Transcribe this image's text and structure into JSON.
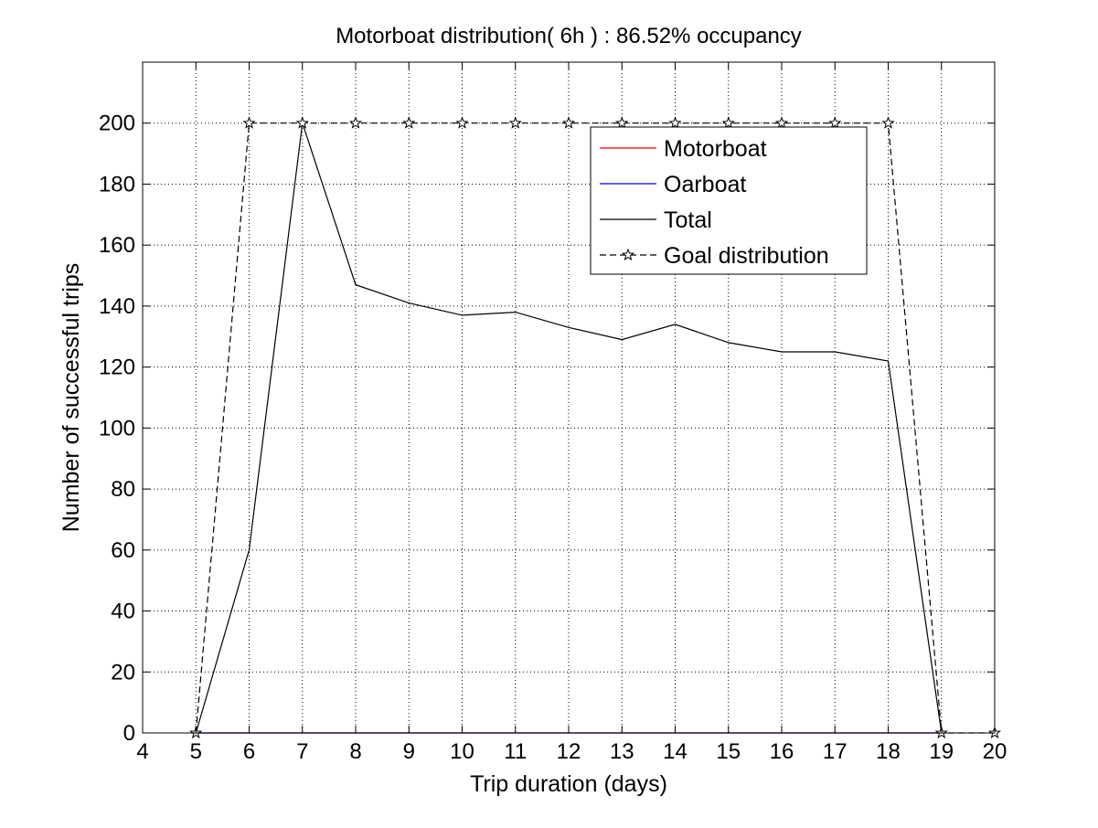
{
  "chart_data": {
    "type": "line",
    "title": "Motorboat distribution( 6h ) : 86.52% occupancy",
    "xlabel": "Trip duration (days)",
    "ylabel": "Number of successful trips",
    "xlim": [
      4,
      20
    ],
    "ylim": [
      0,
      220
    ],
    "xticks": [
      4,
      5,
      6,
      7,
      8,
      9,
      10,
      11,
      12,
      13,
      14,
      15,
      16,
      17,
      18,
      19,
      20
    ],
    "yticks": [
      0,
      20,
      40,
      60,
      80,
      100,
      120,
      140,
      160,
      180,
      200
    ],
    "grid": true,
    "legend_position": "top-right",
    "series": [
      {
        "name": "Motorboat",
        "color": "#ff0000",
        "line_style": "solid",
        "marker": "none",
        "x": [
          5,
          6,
          7,
          8,
          9,
          10,
          11,
          12,
          13,
          14,
          15,
          16,
          17,
          18,
          19
        ],
        "y": [
          0,
          0,
          0,
          0,
          0,
          0,
          0,
          0,
          0,
          0,
          0,
          0,
          0,
          0,
          0
        ]
      },
      {
        "name": "Oarboat",
        "color": "#0000ff",
        "line_style": "solid",
        "marker": "none",
        "x": [
          5,
          6,
          7,
          8,
          9,
          10,
          11,
          12,
          13,
          14,
          15,
          16,
          17,
          18,
          19
        ],
        "y": [
          0,
          0,
          0,
          0,
          0,
          0,
          0,
          0,
          0,
          0,
          0,
          0,
          0,
          0,
          0
        ]
      },
      {
        "name": "Total",
        "color": "#000000",
        "line_style": "solid",
        "marker": "none",
        "x": [
          5,
          6,
          7,
          8,
          9,
          10,
          11,
          12,
          13,
          14,
          15,
          16,
          17,
          18,
          19
        ],
        "y": [
          0,
          60,
          200,
          147,
          141,
          137,
          138,
          133,
          129,
          134,
          128,
          125,
          125,
          122,
          0
        ]
      },
      {
        "name": "Goal distribution",
        "color": "#000000",
        "line_style": "dashed",
        "marker": "star",
        "x": [
          5,
          6,
          7,
          8,
          9,
          10,
          11,
          12,
          13,
          14,
          15,
          16,
          17,
          18,
          19,
          20
        ],
        "y": [
          0,
          200,
          200,
          200,
          200,
          200,
          200,
          200,
          200,
          200,
          200,
          200,
          200,
          200,
          0,
          0
        ]
      }
    ]
  }
}
